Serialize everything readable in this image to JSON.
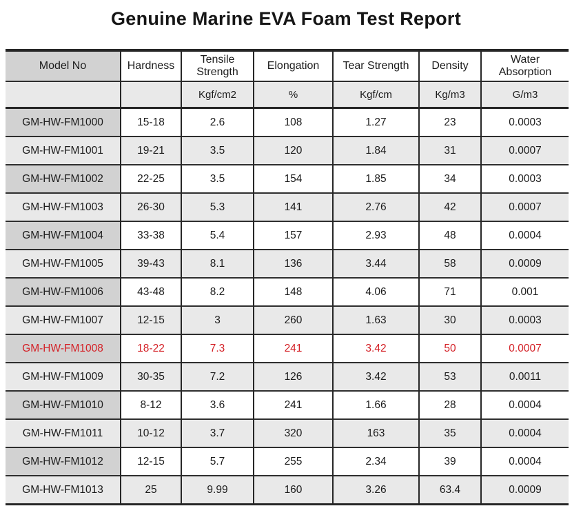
{
  "title": "Genuine Marine EVA Foam Test Report",
  "colors": {
    "highlight_red": "#d42127",
    "model_column_gray": "#d2d2d2",
    "alt_row_gray": "#e9e9e9",
    "border_dark": "#262626"
  },
  "table": {
    "columns": [
      "Model No",
      "Hardness",
      "Tensile Strength",
      "Elongation",
      "Tear Strength",
      "Density",
      "Water Absorption"
    ],
    "units": [
      "",
      "",
      "Kgf/cm2",
      "%",
      "Kgf/cm",
      "Kg/m3",
      "G/m3"
    ],
    "rows": [
      {
        "cells": [
          "GM-HW-FM1000",
          "15-18",
          "2.6",
          "108",
          "1.27",
          "23",
          "0.0003"
        ],
        "highlight": false
      },
      {
        "cells": [
          "GM-HW-FM1001",
          "19-21",
          "3.5",
          "120",
          "1.84",
          "31",
          "0.0007"
        ],
        "highlight": false
      },
      {
        "cells": [
          "GM-HW-FM1002",
          "22-25",
          "3.5",
          "154",
          "1.85",
          "34",
          "0.0003"
        ],
        "highlight": false
      },
      {
        "cells": [
          "GM-HW-FM1003",
          "26-30",
          "5.3",
          "141",
          "2.76",
          "42",
          "0.0007"
        ],
        "highlight": false
      },
      {
        "cells": [
          "GM-HW-FM1004",
          "33-38",
          "5.4",
          "157",
          "2.93",
          "48",
          "0.0004"
        ],
        "highlight": false
      },
      {
        "cells": [
          "GM-HW-FM1005",
          "39-43",
          "8.1",
          "136",
          "3.44",
          "58",
          "0.0009"
        ],
        "highlight": false
      },
      {
        "cells": [
          "GM-HW-FM1006",
          "43-48",
          "8.2",
          "148",
          "4.06",
          "71",
          "0.001"
        ],
        "highlight": false
      },
      {
        "cells": [
          "GM-HW-FM1007",
          "12-15",
          "3",
          "260",
          "1.63",
          "30",
          "0.0003"
        ],
        "highlight": false
      },
      {
        "cells": [
          "GM-HW-FM1008",
          "18-22",
          "7.3",
          "241",
          "3.42",
          "50",
          "0.0007"
        ],
        "highlight": true
      },
      {
        "cells": [
          "GM-HW-FM1009",
          "30-35",
          "7.2",
          "126",
          "3.42",
          "53",
          "0.0011"
        ],
        "highlight": false
      },
      {
        "cells": [
          "GM-HW-FM1010",
          "8-12",
          "3.6",
          "241",
          "1.66",
          "28",
          "0.0004"
        ],
        "highlight": false
      },
      {
        "cells": [
          "GM-HW-FM1011",
          "10-12",
          "3.7",
          "320",
          "163",
          "35",
          "0.0004"
        ],
        "highlight": false
      },
      {
        "cells": [
          "GM-HW-FM1012",
          "12-15",
          "5.7",
          "255",
          "2.34",
          "39",
          "0.0004"
        ],
        "highlight": false
      },
      {
        "cells": [
          "GM-HW-FM1013",
          "25",
          "9.99",
          "160",
          "3.26",
          "63.4",
          "0.0009"
        ],
        "highlight": false
      }
    ]
  }
}
